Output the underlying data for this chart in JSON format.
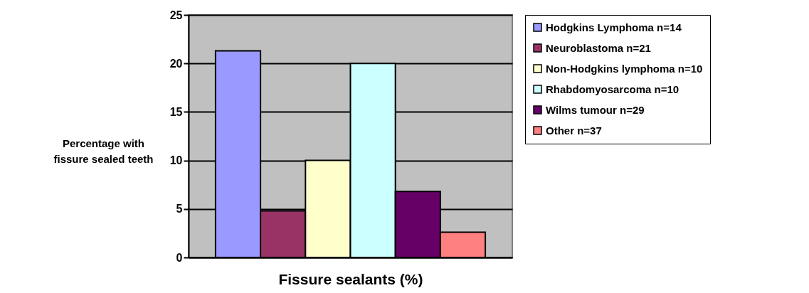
{
  "chart_data": {
    "type": "bar",
    "xlabel": "Fissure sealants (%)",
    "ylabel": "Percentage with fissure sealed teeth",
    "categories": [
      null
    ],
    "series": [
      {
        "name": "Hodgkins Lymphoma n=14",
        "color": "#9999ff",
        "values": [
          21.3
        ]
      },
      {
        "name": "Neuroblastoma n=21",
        "color": "#993366",
        "values": [
          4.8
        ]
      },
      {
        "name": "Non-Hodgkins lymphoma n=10",
        "color": "#ffffcc",
        "values": [
          10
        ]
      },
      {
        "name": "Rhabdomyosarcoma n=10",
        "color": "#ccffff",
        "values": [
          20
        ]
      },
      {
        "name": "Wilms tumour n=29",
        "color": "#660066",
        "values": [
          6.8
        ]
      },
      {
        "name": "Other n=37",
        "color": "#ff8080",
        "values": [
          2.6
        ]
      }
    ],
    "ylim": [
      0,
      25
    ],
    "yticks": [
      0,
      5,
      10,
      15,
      20,
      25
    ],
    "grid": "y",
    "legend": "right"
  }
}
